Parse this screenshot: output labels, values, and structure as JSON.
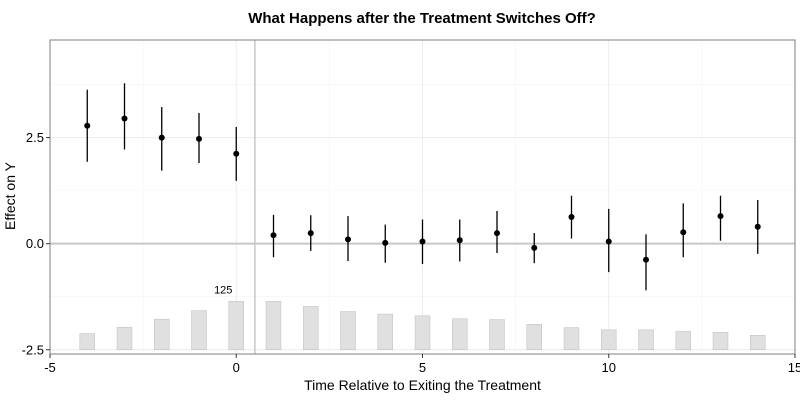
{
  "chart_data": {
    "type": "scatter",
    "title": "What Happens after the Treatment Switches Off?",
    "xlabel": "Time Relative to Exiting the Treatment",
    "ylabel": "Effect on Y",
    "xlim": [
      -5,
      15
    ],
    "ylim": [
      -2.6,
      4.8
    ],
    "x_ticks": [
      -5,
      0,
      5,
      10,
      15
    ],
    "y_ticks": [
      -2.5,
      0.0,
      2.5
    ],
    "y_tick_labels": [
      "-2.5",
      "0.0",
      "2.5"
    ],
    "grid": true,
    "vertical_reference_line": 0.5,
    "horizontal_reference_line": 0,
    "series": [
      {
        "x": [
          -4,
          -3,
          -2,
          -1,
          0,
          1,
          2,
          3,
          4,
          5,
          6,
          7,
          8,
          9,
          10,
          11,
          12,
          13,
          14
        ],
        "y": [
          2.78,
          2.95,
          2.5,
          2.47,
          2.12,
          0.2,
          0.25,
          0.1,
          0.02,
          0.05,
          0.08,
          0.25,
          -0.1,
          0.63,
          0.05,
          -0.38,
          0.27,
          0.65,
          0.4
        ],
        "ci_low": [
          1.93,
          2.22,
          1.72,
          1.9,
          1.48,
          -0.32,
          -0.17,
          -0.41,
          -0.45,
          -0.48,
          -0.42,
          -0.22,
          -0.46,
          0.12,
          -0.67,
          -1.1,
          -0.32,
          0.07,
          -0.24
        ],
        "ci_high": [
          3.63,
          3.78,
          3.22,
          3.08,
          2.75,
          0.68,
          0.67,
          0.65,
          0.45,
          0.57,
          0.57,
          0.77,
          0.25,
          1.13,
          0.82,
          0.22,
          0.95,
          1.13,
          1.03
        ]
      }
    ],
    "observation_bars": {
      "x": [
        -4,
        -3,
        -2,
        -1,
        0,
        1,
        2,
        3,
        4,
        5,
        6,
        7,
        8,
        9,
        10,
        11,
        12,
        13,
        14
      ],
      "top_y": [
        -2.12,
        -1.97,
        -1.78,
        -1.58,
        -1.36,
        -1.36,
        -1.48,
        -1.6,
        -1.66,
        -1.7,
        -1.77,
        -1.79,
        -1.9,
        -1.98,
        -2.03,
        -2.03,
        -2.07,
        -2.09,
        -2.16
      ],
      "baseline_y": -2.5,
      "annotation": {
        "x": 0,
        "text": "125"
      }
    }
  },
  "colors": {
    "point": "#000000",
    "bar_fill": "#e0e0e0",
    "bar_stroke": "#c4c4c4",
    "grid": "#ebebeb",
    "reference_line": "#c8c8c8",
    "panel_border": "#7f7f7f"
  }
}
